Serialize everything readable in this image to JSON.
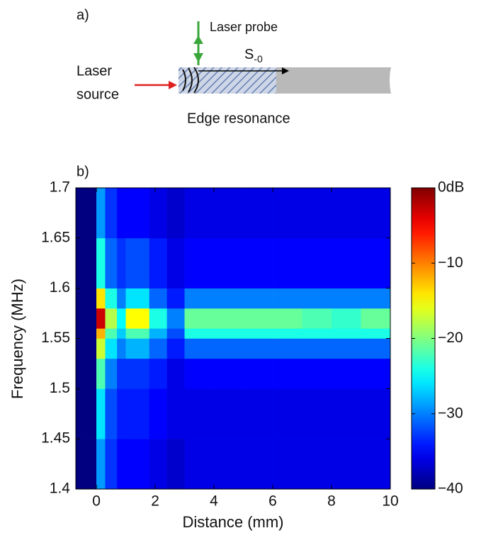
{
  "diagram": {
    "label": "a)",
    "probe": "Laser probe",
    "wave": "S",
    "wave_sub": "-0",
    "source_line1": "Laser",
    "source_line2": "source",
    "caption": "Edge resonance"
  },
  "chart_data": {
    "type": "heatmap",
    "label": "b)",
    "xlabel": "Distance (mm)",
    "ylabel": "Frequency (MHz)",
    "xlim": [
      -0.7,
      10
    ],
    "xticks": [
      0,
      2,
      4,
      6,
      8,
      10
    ],
    "ylim": [
      1.4,
      1.7
    ],
    "yticks": [
      1.4,
      1.45,
      1.5,
      1.55,
      1.6,
      1.65,
      1.7
    ],
    "colormap": "jet",
    "clim": [
      -40,
      0
    ],
    "cticks": [
      {
        "value": 0,
        "label": "0dB"
      },
      {
        "value": -10,
        "label": "−10"
      },
      {
        "value": -20,
        "label": "−20"
      },
      {
        "value": -30,
        "label": "−30"
      },
      {
        "value": -40,
        "label": "−40"
      }
    ],
    "xedges": [
      -0.7,
      0,
      0.3,
      0.7,
      1.0,
      1.8,
      2.4,
      3,
      4,
      5,
      6,
      7,
      8,
      9,
      10
    ],
    "yedges": [
      1.4,
      1.45,
      1.5,
      1.53,
      1.55,
      1.56,
      1.58,
      1.6,
      1.65,
      1.7
    ],
    "z": [
      [
        -40,
        -29,
        -33,
        -35,
        -35,
        -36,
        -37,
        -36,
        -36,
        -36,
        -36,
        -36,
        -36,
        -36
      ],
      [
        -40,
        -26,
        -32,
        -34,
        -34,
        -35,
        -36,
        -36,
        -36,
        -36,
        -36,
        -36,
        -36,
        -36
      ],
      [
        -40,
        -22,
        -30,
        -33,
        -33,
        -34,
        -36,
        -35,
        -35,
        -35,
        -35,
        -35,
        -35,
        -35
      ],
      [
        -40,
        -17,
        -26,
        -30,
        -28,
        -31,
        -34,
        -31,
        -31,
        -31,
        -31,
        -31,
        -31,
        -31
      ],
      [
        -40,
        -12,
        -22,
        -27,
        -22,
        -28,
        -32,
        -24,
        -24,
        -24,
        -24,
        -24,
        -24,
        -24
      ],
      [
        -40,
        -3,
        -18,
        -25,
        -15,
        -24,
        -30,
        -21,
        -21,
        -21,
        -21,
        -22,
        -23,
        -21
      ],
      [
        -40,
        -14,
        -24,
        -30,
        -26,
        -31,
        -34,
        -30,
        -30,
        -30,
        -30,
        -30,
        -30,
        -30
      ],
      [
        -40,
        -24,
        -31,
        -33,
        -32,
        -34,
        -36,
        -35,
        -35,
        -35,
        -35,
        -35,
        -35,
        -35
      ],
      [
        -40,
        -29,
        -33,
        -35,
        -35,
        -36,
        -37,
        -36,
        -36,
        -36,
        -36,
        -36,
        -36,
        -36
      ]
    ]
  }
}
